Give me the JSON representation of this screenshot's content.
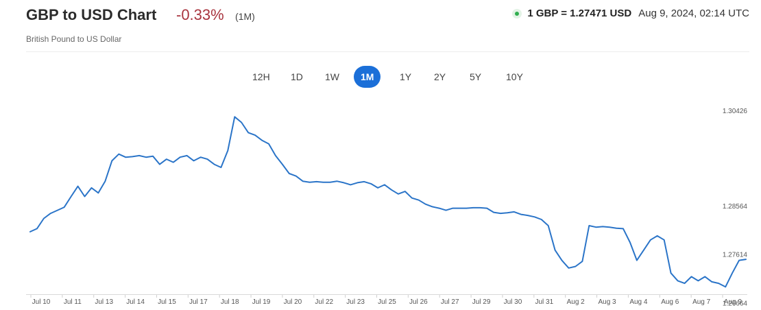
{
  "header": {
    "title": "GBP to USD Chart",
    "change": "-0.33%",
    "period": "(1M)",
    "subtitle": "British Pound to US Dollar",
    "rate": "1 GBP = 1.27471 USD",
    "timestamp": "Aug 9, 2024, 02:14 UTC"
  },
  "colors": {
    "line": "#2a74c8",
    "accent": "#1b6fd8",
    "negative": "#a8343e",
    "live": "#2fae4e"
  },
  "icons": {
    "live_indicator": "green-dot-icon"
  },
  "tabs": [
    {
      "label": "12H",
      "active": false
    },
    {
      "label": "1D",
      "active": false
    },
    {
      "label": "1W",
      "active": false
    },
    {
      "label": "1M",
      "active": true
    },
    {
      "label": "1Y",
      "active": false
    },
    {
      "label": "2Y",
      "active": false
    },
    {
      "label": "5Y",
      "active": false
    },
    {
      "label": "10Y",
      "active": false
    }
  ],
  "chart_data": {
    "type": "line",
    "title": "",
    "xlabel": "",
    "ylabel": "",
    "grid": false,
    "y_axis_position": "right",
    "ylim": [
      1.2695,
      1.3071
    ],
    "y_ticks": [
      {
        "value": 1.30426,
        "label": "1.30426"
      },
      {
        "value": 1.28564,
        "label": "1.28564"
      },
      {
        "value": 1.27614,
        "label": "1.27614"
      },
      {
        "value": 1.26664,
        "label": "1.26664"
      }
    ],
    "x_ticks": [
      "Jul 10",
      "Jul 11",
      "Jul 13",
      "Jul 14",
      "Jul 15",
      "Jul 17",
      "Jul 18",
      "Jul 19",
      "Jul 20",
      "Jul 22",
      "Jul 23",
      "Jul 25",
      "Jul 26",
      "Jul 27",
      "Jul 29",
      "Jul 30",
      "Jul 31",
      "Aug 2",
      "Aug 3",
      "Aug 4",
      "Aug 6",
      "Aug 7",
      "Aug 9"
    ],
    "series": [
      {
        "values": [
          [
            0,
            1.2816
          ],
          [
            1,
            1.2822
          ],
          [
            2,
            1.2842
          ],
          [
            3,
            1.2852
          ],
          [
            4,
            1.2858
          ],
          [
            5,
            1.2864
          ],
          [
            6,
            1.2885
          ],
          [
            7,
            1.2905
          ],
          [
            8,
            1.2885
          ],
          [
            9,
            1.2902
          ],
          [
            10,
            1.2892
          ],
          [
            11,
            1.2915
          ],
          [
            12,
            1.2955
          ],
          [
            13,
            1.2968
          ],
          [
            14,
            1.2962
          ],
          [
            15,
            1.2963
          ],
          [
            16,
            1.2965
          ],
          [
            17,
            1.2962
          ],
          [
            18,
            1.2964
          ],
          [
            19,
            1.2948
          ],
          [
            20,
            1.2958
          ],
          [
            21,
            1.2952
          ],
          [
            22,
            1.2962
          ],
          [
            23,
            1.2965
          ],
          [
            24,
            1.2955
          ],
          [
            25,
            1.2962
          ],
          [
            26,
            1.2958
          ],
          [
            27,
            1.2948
          ],
          [
            28,
            1.2942
          ],
          [
            29,
            1.2975
          ],
          [
            30,
            1.3041
          ],
          [
            31,
            1.303
          ],
          [
            32,
            1.301
          ],
          [
            33,
            1.3005
          ],
          [
            34,
            1.2995
          ],
          [
            35,
            1.2988
          ],
          [
            36,
            1.2965
          ],
          [
            37,
            1.2948
          ],
          [
            38,
            1.293
          ],
          [
            39,
            1.2925
          ],
          [
            40,
            1.2915
          ],
          [
            41,
            1.2913
          ],
          [
            42,
            1.2914
          ],
          [
            43,
            1.2913
          ],
          [
            44,
            1.2913
          ],
          [
            45,
            1.2915
          ],
          [
            46,
            1.2912
          ],
          [
            47,
            1.2908
          ],
          [
            48,
            1.2912
          ],
          [
            49,
            1.2914
          ],
          [
            50,
            1.291
          ],
          [
            51,
            1.2902
          ],
          [
            52,
            1.2908
          ],
          [
            53,
            1.2898
          ],
          [
            54,
            1.289
          ],
          [
            55,
            1.2895
          ],
          [
            56,
            1.2882
          ],
          [
            57,
            1.2878
          ],
          [
            58,
            1.287
          ],
          [
            59,
            1.2865
          ],
          [
            60,
            1.2862
          ],
          [
            61,
            1.2858
          ],
          [
            62,
            1.2862
          ],
          [
            63,
            1.2862
          ],
          [
            64,
            1.2862
          ],
          [
            65,
            1.2863
          ],
          [
            66,
            1.2863
          ],
          [
            67,
            1.2862
          ],
          [
            68,
            1.2854
          ],
          [
            69,
            1.2852
          ],
          [
            70,
            1.2853
          ],
          [
            71,
            1.2855
          ],
          [
            72,
            1.285
          ],
          [
            73,
            1.2848
          ],
          [
            74,
            1.2845
          ],
          [
            75,
            1.284
          ],
          [
            76,
            1.2828
          ],
          [
            77,
            1.278
          ],
          [
            78,
            1.276
          ],
          [
            79,
            1.2745
          ],
          [
            80,
            1.2748
          ],
          [
            81,
            1.2758
          ],
          [
            82,
            1.2828
          ],
          [
            83,
            1.2825
          ],
          [
            84,
            1.2826
          ],
          [
            85,
            1.2825
          ],
          [
            86,
            1.2823
          ],
          [
            87,
            1.2822
          ],
          [
            88,
            1.2795
          ],
          [
            89,
            1.276
          ],
          [
            90,
            1.278
          ],
          [
            91,
            1.28
          ],
          [
            92,
            1.2808
          ],
          [
            93,
            1.28
          ],
          [
            94,
            1.2735
          ],
          [
            95,
            1.272
          ],
          [
            96,
            1.2715
          ],
          [
            97,
            1.2728
          ],
          [
            98,
            1.272
          ],
          [
            99,
            1.2728
          ],
          [
            100,
            1.2718
          ],
          [
            101,
            1.2715
          ],
          [
            102,
            1.2708
          ],
          [
            103,
            1.2735
          ],
          [
            104,
            1.276
          ],
          [
            105,
            1.2762
          ]
        ]
      }
    ]
  }
}
